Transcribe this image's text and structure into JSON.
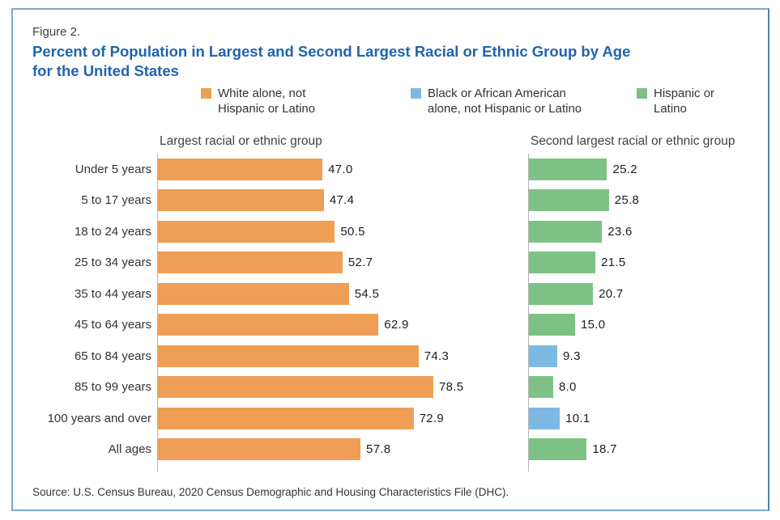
{
  "header": {
    "figure_label": "Figure 2.",
    "title_line1": "Percent of Population in Largest and Second Largest Racial or Ethnic Group by Age",
    "title_line2": "for the United States"
  },
  "legend": {
    "items": [
      {
        "id": "white-alone-not-hispanic-or-latino",
        "color": "#ee9f55",
        "label_line1": "White alone, not",
        "label_line2": "Hispanic or Latino"
      },
      {
        "id": "black-alone-not-hispanic-or-latino",
        "color": "#7eb9e4",
        "label_line1": "Black or African American",
        "label_line2": "alone, not Hispanic or Latino"
      },
      {
        "id": "hispanic-or-latino",
        "color": "#7ec185",
        "label_line1": "Hispanic or",
        "label_line2": "Latino"
      }
    ],
    "colors": {
      "white": "#ee9f55",
      "black": "#7eb9e4",
      "hispanic": "#7ec185"
    }
  },
  "chart_data": {
    "type": "bar",
    "orientation": "horizontal",
    "grid": false,
    "legend_position": "top",
    "categories": [
      "Under 5 years",
      "5 to 17 years",
      "18 to 24 years",
      "25 to 34 years",
      "35 to 44 years",
      "45 to 64 years",
      "65 to 84 years",
      "85 to 99 years",
      "100 years and over",
      "All ages"
    ],
    "panels": [
      {
        "title": "Largest racial or ethnic group",
        "unit": "percent",
        "axis_max": 99,
        "bars": [
          {
            "value": 47.0,
            "label": "47.0",
            "group": "white"
          },
          {
            "value": 47.4,
            "label": "47.4",
            "group": "white"
          },
          {
            "value": 50.5,
            "label": "50.5",
            "group": "white"
          },
          {
            "value": 52.7,
            "label": "52.7",
            "group": "white"
          },
          {
            "value": 54.5,
            "label": "54.5",
            "group": "white"
          },
          {
            "value": 62.9,
            "label": "62.9",
            "group": "white"
          },
          {
            "value": 74.3,
            "label": "74.3",
            "group": "white"
          },
          {
            "value": 78.5,
            "label": "78.5",
            "group": "white"
          },
          {
            "value": 72.9,
            "label": "72.9",
            "group": "white"
          },
          {
            "value": 57.8,
            "label": "57.8",
            "group": "white"
          }
        ]
      },
      {
        "title": "Second largest racial or ethnic group",
        "unit": "percent",
        "axis_max": 76,
        "bars": [
          {
            "value": 25.2,
            "label": "25.2",
            "group": "hispanic"
          },
          {
            "value": 25.8,
            "label": "25.8",
            "group": "hispanic"
          },
          {
            "value": 23.6,
            "label": "23.6",
            "group": "hispanic"
          },
          {
            "value": 21.5,
            "label": "21.5",
            "group": "hispanic"
          },
          {
            "value": 20.7,
            "label": "20.7",
            "group": "hispanic"
          },
          {
            "value": 15.0,
            "label": "15.0",
            "group": "hispanic"
          },
          {
            "value": 9.3,
            "label": "9.3",
            "group": "black"
          },
          {
            "value": 8.0,
            "label": "8.0",
            "group": "hispanic"
          },
          {
            "value": 10.1,
            "label": "10.1",
            "group": "black"
          },
          {
            "value": 18.7,
            "label": "18.7",
            "group": "hispanic"
          }
        ]
      }
    ]
  },
  "footer": {
    "source": "Source: U.S. Census Bureau, 2020 Census Demographic and Housing Characteristics File (DHC)."
  }
}
